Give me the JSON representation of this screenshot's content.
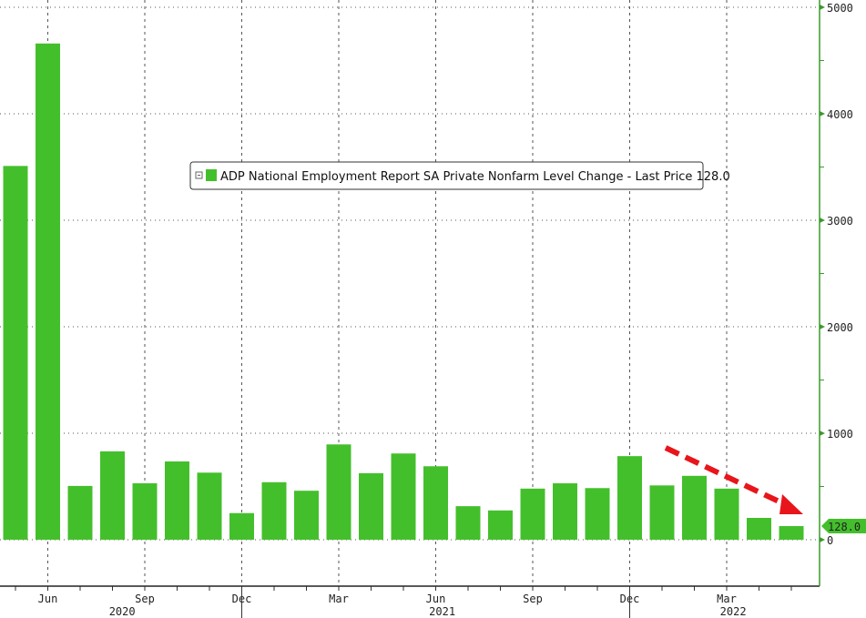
{
  "chart_data": {
    "type": "bar",
    "title": "",
    "legend": {
      "label": "ADP National Employment Report SA Private Nonfarm Level Change - Last Price 128.0",
      "placement": "top-center"
    },
    "last_value_label": "128.0",
    "categories": [
      "May 2020",
      "Jun 2020",
      "Jul 2020",
      "Aug 2020",
      "Sep 2020",
      "Oct 2020",
      "Nov 2020",
      "Dec 2020",
      "Jan 2021",
      "Feb 2021",
      "Mar 2021",
      "Apr 2021",
      "May 2021",
      "Jun 2021",
      "Jul 2021",
      "Aug 2021",
      "Sep 2021",
      "Oct 2021",
      "Nov 2021",
      "Dec 2021",
      "Jan 2022",
      "Feb 2022",
      "Mar 2022",
      "Apr 2022",
      "May 2022"
    ],
    "values": [
      3510,
      4660,
      505,
      830,
      530,
      735,
      630,
      250,
      540,
      460,
      895,
      625,
      810,
      690,
      315,
      275,
      480,
      530,
      485,
      785,
      510,
      600,
      480,
      205,
      128
    ],
    "x_tick_labels": [
      {
        "label": "Jun",
        "index": 1
      },
      {
        "label": "Sep",
        "index": 4
      },
      {
        "label": "Dec",
        "index": 7
      },
      {
        "label": "Mar",
        "index": 10
      },
      {
        "label": "Jun",
        "index": 13
      },
      {
        "label": "Sep",
        "index": 16
      },
      {
        "label": "Dec",
        "index": 19
      },
      {
        "label": "Mar",
        "index": 22
      }
    ],
    "year_labels": [
      {
        "label": "2020",
        "index": 3.3
      },
      {
        "label": "2021",
        "index": 13.2
      },
      {
        "label": "2022",
        "index": 22.2
      }
    ],
    "y_ticks": [
      "0",
      "1000",
      "2000",
      "3000",
      "4000",
      "5000"
    ],
    "ylim": [
      -400,
      5050
    ],
    "y_axis_side": "right",
    "grid": true,
    "annotation": "red dashed arrow pointing down toward latest bar",
    "colors": {
      "bar": "#44bf2c",
      "axis": "#3a9a2a",
      "arrow": "#e8151b",
      "last_label_bg": "#44bf2c"
    }
  }
}
